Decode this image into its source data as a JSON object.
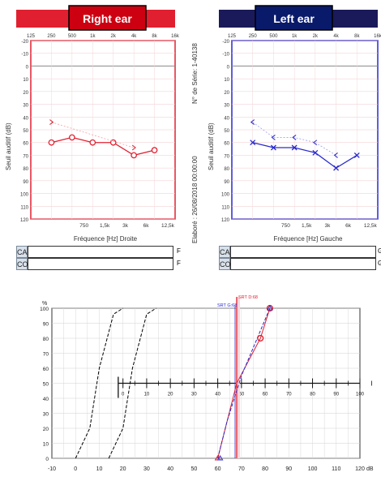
{
  "right_ear": {
    "title": "Right ear",
    "accent": "#e02030",
    "title_bg": "#cc0010",
    "top_ticks": [
      "125",
      "250",
      "500",
      "1k",
      "2k",
      "4k",
      "8k",
      "16k"
    ],
    "bottom_ticks": [
      "750",
      "1,5k",
      "3k",
      "6k",
      "12,5k"
    ],
    "y_ticks": [
      "-20",
      "-10",
      "0",
      "10",
      "20",
      "30",
      "40",
      "50",
      "60",
      "70",
      "80",
      "90",
      "100",
      "110",
      "120"
    ],
    "ylabel": "Seuil auditif (dB)",
    "xlabel": "Fréquence [Hz] Droite"
  },
  "left_ear": {
    "title": "Left ear",
    "accent": "#2a2acc",
    "title_bg": "#0a1a6a",
    "top_ticks": [
      "125",
      "250",
      "500",
      "1k",
      "2k",
      "4k",
      "8k",
      "16k"
    ],
    "bottom_ticks": [
      "750",
      "1,5k",
      "3k",
      "6k",
      "12,5k"
    ],
    "y_ticks": [
      "-20",
      "-10",
      "0",
      "10",
      "20",
      "30",
      "40",
      "50",
      "60",
      "70",
      "80",
      "90",
      "100",
      "110",
      "120"
    ],
    "ylabel": "Seuil auditif (dB)",
    "xlabel": "Fréquence [Hz] Gauche"
  },
  "middle": {
    "serial": "N° de Série: 1-40138",
    "date": "Elaboré : 26/08/2018 00:00:00"
  },
  "ca_rows": {
    "ca": "CA",
    "co": "CO",
    "right_ca_end": "F",
    "right_co_end": "F",
    "left_ca_end": "G",
    "left_co_end": "G"
  },
  "chart_data": [
    {
      "type": "line",
      "title": "Right ear",
      "x_scale": "log",
      "x_ticks": [
        "125",
        "250",
        "500",
        "1k",
        "2k",
        "4k",
        "8k",
        "16k"
      ],
      "ylim": [
        -20,
        120
      ],
      "y_inverted": true,
      "series": [
        {
          "marker": "circle",
          "x": [
            250,
            500,
            1000,
            2000,
            4000,
            8000
          ],
          "y": [
            60,
            56,
            60,
            60,
            70,
            66
          ]
        },
        {
          "marker": "bracket",
          "x": [
            250,
            4000
          ],
          "y": [
            44,
            64
          ]
        }
      ]
    },
    {
      "type": "line",
      "title": "Left ear",
      "x_scale": "log",
      "x_ticks": [
        "125",
        "250",
        "500",
        "1k",
        "2k",
        "4k",
        "8k",
        "16k"
      ],
      "ylim": [
        -20,
        120
      ],
      "y_inverted": true,
      "series": [
        {
          "marker": "cross",
          "x": [
            250,
            500,
            1000,
            2000,
            4000,
            8000
          ],
          "y": [
            60,
            64,
            64,
            68,
            80,
            70
          ]
        },
        {
          "marker": "bracket",
          "x": [
            250,
            500,
            1000,
            2000,
            4000
          ],
          "y": [
            44,
            56,
            56,
            60,
            70
          ]
        }
      ]
    },
    {
      "type": "line",
      "x_ticks": [
        "-10",
        "0",
        "10",
        "20",
        "30",
        "40",
        "50",
        "60",
        "70",
        "80",
        "90",
        "100",
        "110",
        "120"
      ],
      "x_unit": "dB",
      "y_ticks": [
        "0",
        "10",
        "20",
        "30",
        "40",
        "50",
        "60",
        "70",
        "80",
        "90",
        "100"
      ],
      "y_unit": "%",
      "xlim": [
        -10,
        120
      ],
      "ylim": [
        0,
        100
      ],
      "inner_axis_ticks": [
        "0",
        "10",
        "20",
        "30",
        "40",
        "50",
        "60",
        "70",
        "80",
        "90",
        "100"
      ],
      "vertical_labels": [
        "SRT G:68",
        "SRT D:68"
      ],
      "series": [
        {
          "color": "#000000",
          "style": "dashed",
          "x": [
            0,
            6,
            10,
            16,
            20
          ],
          "y": [
            0,
            20,
            60,
            96,
            100
          ]
        },
        {
          "color": "#000000",
          "style": "dashed",
          "x": [
            14,
            20,
            24,
            30,
            34
          ],
          "y": [
            0,
            20,
            60,
            96,
            100
          ]
        },
        {
          "color": "#e02030",
          "style": "solid",
          "x": [
            60,
            68,
            78,
            82
          ],
          "y": [
            0,
            50,
            80,
            100
          ]
        },
        {
          "color": "#2a2acc",
          "style": "dashed",
          "x": [
            60,
            64,
            70,
            82
          ],
          "y": [
            0,
            25,
            55,
            100
          ]
        }
      ]
    }
  ]
}
